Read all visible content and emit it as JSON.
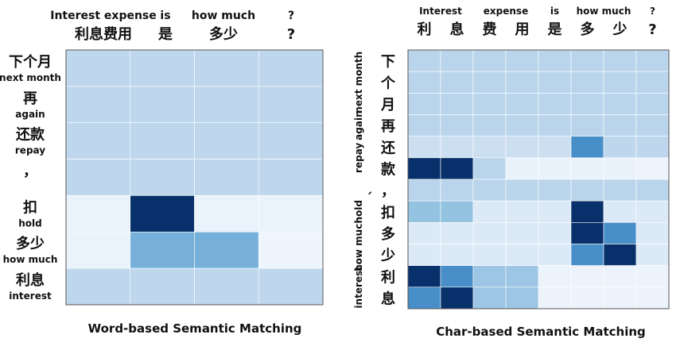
{
  "chart_data": [
    {
      "type": "heatmap",
      "title": "Word-based Semantic Matching",
      "columns": [
        {
          "en": "Interest expense",
          "zh": "利息费用"
        },
        {
          "en": "is",
          "zh": "是"
        },
        {
          "en": "how much",
          "zh": "多少"
        },
        {
          "en": "?",
          "zh": "?"
        }
      ],
      "rows": [
        {
          "zh": "下个月",
          "en": "next month"
        },
        {
          "zh": "再",
          "en": "again"
        },
        {
          "zh": "还款",
          "en": "repay"
        },
        {
          "zh": "，",
          "en": ""
        },
        {
          "zh": "扣",
          "en": "hold"
        },
        {
          "zh": "多少",
          "en": "how much"
        },
        {
          "zh": "利息",
          "en": "interest"
        }
      ],
      "values": [
        [
          0.28,
          0.28,
          0.28,
          0.28
        ],
        [
          0.28,
          0.28,
          0.28,
          0.28
        ],
        [
          0.28,
          0.28,
          0.28,
          0.28
        ],
        [
          0.28,
          0.28,
          0.28,
          0.28
        ],
        [
          0.05,
          1.0,
          0.05,
          0.05
        ],
        [
          0.05,
          0.55,
          0.55,
          0.02
        ],
        [
          0.28,
          0.28,
          0.28,
          0.28
        ]
      ]
    },
    {
      "type": "heatmap",
      "title": "Char-based Semantic Matching",
      "top_words": [
        {
          "en": "Interest",
          "cols": [
            0,
            1
          ]
        },
        {
          "en": "expense",
          "cols": [
            2,
            3
          ]
        },
        {
          "en": "is",
          "cols": [
            4,
            4
          ]
        },
        {
          "en": "how much",
          "cols": [
            5,
            6
          ]
        },
        {
          "en": "?",
          "cols": [
            7,
            7
          ]
        }
      ],
      "columns": [
        "利",
        "息",
        "费",
        "用",
        "是",
        "多",
        "少",
        "?"
      ],
      "rows": [
        "下",
        "个",
        "月",
        "再",
        "还",
        "款",
        "，",
        "扣",
        "多",
        "少",
        "利",
        "息"
      ],
      "row_words": [
        {
          "en": "next month",
          "rows": [
            0,
            2
          ]
        },
        {
          "en": "again",
          "rows": [
            3,
            3
          ]
        },
        {
          "en": "repay",
          "rows": [
            4,
            5
          ]
        },
        {
          "en": "、",
          "rows": [
            6,
            6
          ]
        },
        {
          "en": "hold",
          "rows": [
            7,
            7
          ]
        },
        {
          "en": "how much",
          "rows": [
            8,
            9
          ]
        },
        {
          "en": "interest",
          "rows": [
            10,
            11
          ]
        }
      ],
      "values": [
        [
          0.3,
          0.3,
          0.3,
          0.3,
          0.3,
          0.3,
          0.3,
          0.3
        ],
        [
          0.3,
          0.3,
          0.3,
          0.3,
          0.3,
          0.3,
          0.3,
          0.3
        ],
        [
          0.3,
          0.3,
          0.3,
          0.3,
          0.3,
          0.3,
          0.3,
          0.3
        ],
        [
          0.3,
          0.3,
          0.3,
          0.3,
          0.3,
          0.3,
          0.3,
          0.3
        ],
        [
          0.22,
          0.22,
          0.22,
          0.22,
          0.22,
          0.7,
          0.28,
          0.28
        ],
        [
          1.0,
          1.0,
          0.3,
          0.06,
          0.06,
          0.06,
          0.06,
          0.03
        ],
        [
          0.3,
          0.3,
          0.3,
          0.3,
          0.3,
          0.3,
          0.3,
          0.3
        ],
        [
          0.45,
          0.45,
          0.14,
          0.14,
          0.14,
          1.0,
          0.14,
          0.14
        ],
        [
          0.14,
          0.14,
          0.14,
          0.14,
          0.14,
          1.0,
          0.7,
          0.14
        ],
        [
          0.14,
          0.14,
          0.14,
          0.14,
          0.14,
          0.7,
          1.0,
          0.14
        ],
        [
          1.0,
          0.7,
          0.42,
          0.42,
          0.04,
          0.04,
          0.04,
          0.04
        ],
        [
          0.7,
          1.0,
          0.42,
          0.42,
          0.04,
          0.04,
          0.04,
          0.04
        ]
      ]
    }
  ],
  "colors": {
    "scale": [
      "#f2f7fd",
      "#dfecf8",
      "#c6dbef",
      "#a8cce6",
      "#86bcde",
      "#5d9fd1",
      "#3a82c4",
      "#1a5ea8",
      "#08306b"
    ],
    "text": "#111111",
    "grid": "#ffffff",
    "frame": "#555555"
  }
}
